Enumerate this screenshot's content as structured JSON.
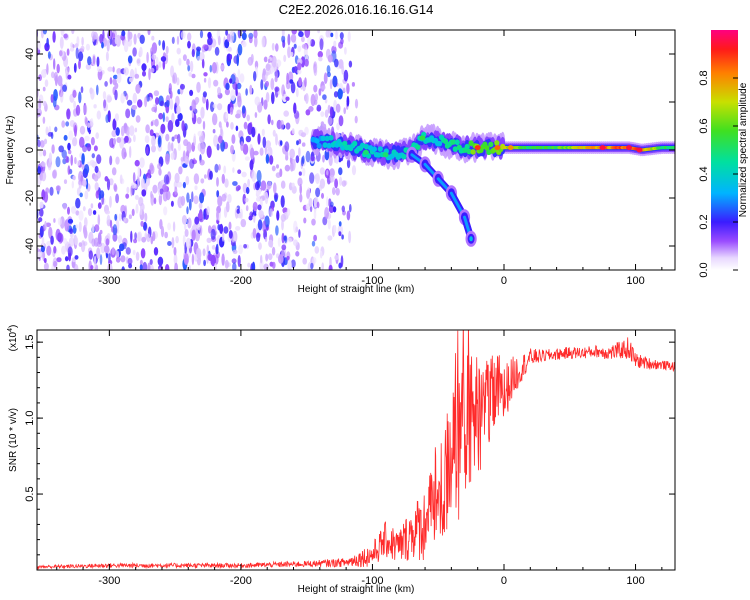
{
  "title": "C2E2.2026.016.16.16.G14",
  "chart_data": [
    {
      "type": "heatmap",
      "name": "spectrogram",
      "xlabel": "Height of straight line (km)",
      "ylabel": "Frequency (Hz)",
      "xlim": [
        -355,
        130
      ],
      "ylim": [
        -50,
        50
      ],
      "xticks": [
        -300,
        -200,
        -100,
        0,
        100
      ],
      "xtick_labels": [
        "-300",
        "-200",
        "-100",
        "0",
        "100"
      ],
      "yticks": [
        -40,
        -20,
        0,
        20,
        40
      ],
      "ytick_labels": [
        "-40",
        "-20",
        "0",
        "20",
        "40"
      ],
      "noise_region": {
        "x_from": -355,
        "x_to": -125,
        "y_from": -50,
        "y_to": 50,
        "amplitude_range": [
          0.05,
          0.25
        ]
      },
      "signal_track": [
        {
          "x": -145,
          "y": 4,
          "amp": 0.3
        },
        {
          "x": -130,
          "y": 3,
          "amp": 0.4
        },
        {
          "x": -115,
          "y": 1,
          "amp": 0.45
        },
        {
          "x": -100,
          "y": -1,
          "amp": 0.4
        },
        {
          "x": -85,
          "y": -2,
          "amp": 0.4
        },
        {
          "x": -70,
          "y": 0,
          "amp": 0.45
        },
        {
          "x": -60,
          "y": 5,
          "amp": 0.45
        },
        {
          "x": -50,
          "y": 4,
          "amp": 0.4
        },
        {
          "x": -40,
          "y": 2,
          "amp": 0.5
        },
        {
          "x": -30,
          "y": 1,
          "amp": 0.5
        },
        {
          "x": -20,
          "y": 1,
          "amp": 0.7
        },
        {
          "x": -10,
          "y": 1,
          "amp": 0.6
        },
        {
          "x": 0,
          "y": 1,
          "amp": 0.75
        },
        {
          "x": 20,
          "y": 1,
          "amp": 0.55
        },
        {
          "x": 40,
          "y": 1,
          "amp": 0.6
        },
        {
          "x": 60,
          "y": 1,
          "amp": 0.75
        },
        {
          "x": 80,
          "y": 1,
          "amp": 0.85
        },
        {
          "x": 95,
          "y": 1,
          "amp": 0.9
        },
        {
          "x": 105,
          "y": 0,
          "amp": 0.9
        },
        {
          "x": 120,
          "y": 1,
          "amp": 0.55
        },
        {
          "x": 130,
          "y": 1,
          "amp": 0.5
        }
      ],
      "signal_branch": [
        {
          "x": -70,
          "y": -2
        },
        {
          "x": -60,
          "y": -6
        },
        {
          "x": -50,
          "y": -12
        },
        {
          "x": -40,
          "y": -18
        },
        {
          "x": -30,
          "y": -28
        },
        {
          "x": -25,
          "y": -37
        }
      ]
    },
    {
      "type": "colorbar",
      "name": "amplitude-colorbar",
      "label": "Normalized spectral amplitude",
      "range": [
        0,
        1
      ],
      "ticks": [
        0,
        0.2,
        0.4,
        0.6,
        0.8
      ],
      "tick_labels": [
        "0.0",
        "0.2",
        "0.4",
        "0.6",
        "0.8"
      ]
    },
    {
      "type": "line",
      "name": "snr-plot",
      "xlabel": "Height of straight line (km)",
      "ylabel": "SNR (10 * v/v)",
      "multiplier": "(x10",
      "multiplier_exp": "4",
      "multiplier_close": ")",
      "xlim": [
        -355,
        130
      ],
      "ylim": [
        0,
        1.58
      ],
      "xticks": [
        -300,
        -200,
        -100,
        0,
        100
      ],
      "xtick_labels": [
        "-300",
        "-200",
        "-100",
        "0",
        "100"
      ],
      "yticks": [
        0.5,
        1.0,
        1.5
      ],
      "ytick_labels": [
        "0.5",
        "1.0",
        "1.5"
      ],
      "color": "#ff2a2a",
      "series": [
        {
          "name": "SNR",
          "x": [
            -355,
            -300,
            -200,
            -150,
            -120,
            -100,
            -90,
            -80,
            -70,
            -60,
            -50,
            -45,
            -40,
            -35,
            -30,
            -25,
            -20,
            -15,
            -10,
            -5,
            0,
            5,
            10,
            15,
            20,
            30,
            40,
            50,
            60,
            70,
            80,
            90,
            95,
            100,
            110,
            120,
            130
          ],
          "values": [
            0.02,
            0.03,
            0.03,
            0.04,
            0.05,
            0.1,
            0.2,
            0.15,
            0.25,
            0.3,
            0.45,
            0.55,
            0.65,
            0.8,
            1.0,
            0.9,
            1.05,
            1.0,
            1.1,
            1.2,
            1.15,
            1.25,
            1.3,
            1.35,
            1.4,
            1.41,
            1.42,
            1.43,
            1.43,
            1.44,
            1.43,
            1.45,
            1.46,
            1.38,
            1.36,
            1.35,
            1.34
          ],
          "noise_amplitude": [
            0.01,
            0.015,
            0.015,
            0.02,
            0.03,
            0.08,
            0.12,
            0.12,
            0.18,
            0.25,
            0.35,
            0.4,
            0.45,
            0.5,
            0.5,
            0.45,
            0.4,
            0.35,
            0.3,
            0.25,
            0.2,
            0.15,
            0.12,
            0.08,
            0.06,
            0.04,
            0.04,
            0.04,
            0.04,
            0.04,
            0.05,
            0.06,
            0.08,
            0.05,
            0.04,
            0.03,
            0.03
          ]
        }
      ]
    }
  ]
}
